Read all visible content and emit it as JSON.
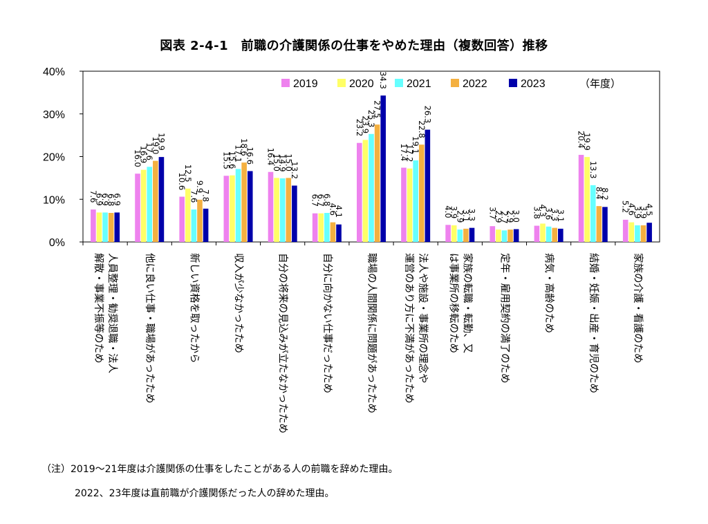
{
  "chart_data": {
    "type": "bar",
    "title": "図表 2-4-1　前職の介護関係の仕事をやめた理由（複数回答）推移",
    "ylim": [
      0,
      40
    ],
    "yticks": [
      "0%",
      "10%",
      "20%",
      "30%",
      "40%"
    ],
    "grid": false,
    "legend_position": "top-right",
    "legend_unit": "（年度）",
    "categories": [
      "人員整理・勧奨退職・法人解散・事業不振等のため",
      "他に良い仕事・職場があったため",
      "新しい資格を取ったから",
      "収入が少なかったため",
      "自分の将来の見込みが立たなかったため",
      "自分に向かない仕事だったため",
      "職場の人間関係に問題があったため",
      "法人や施設・事業所の理念や運営のあり方に不満があったため",
      "家族の転職・転勤、又は事業所の移転のため",
      "定年・雇用契約の満了のため",
      "病気・高齢のため",
      "結婚・妊娠・出産・育児のため",
      "家族の介護・看護のため"
    ],
    "category_lines": [
      [
        "人員整理・勧奨退職・法人",
        "解散・事業不振等のため"
      ],
      [
        "他に良い仕事・職場があったため"
      ],
      [
        "新しい資格を取ったから"
      ],
      [
        "収入が少なかったため"
      ],
      [
        "自分の将来の見込みが立たなかったため"
      ],
      [
        "自分に向かない仕事だったため"
      ],
      [
        "職場の人間関係に問題があったため"
      ],
      [
        "法人や施設・事業所の理念や",
        "運営のあり方に不満があったため"
      ],
      [
        "家族の転職・転勤、又",
        "は事業所の移転のため"
      ],
      [
        "定年・雇用契約の満了のため"
      ],
      [
        "病気・高齢のため"
      ],
      [
        "結婚・妊娠・出産・育児のため"
      ],
      [
        "家族の介護・看護のため"
      ]
    ],
    "series": [
      {
        "name": "2019",
        "color": "#ee82ee",
        "values": [
          7.6,
          16.0,
          10.6,
          15.5,
          16.4,
          6.7,
          23.2,
          17.4,
          4.0,
          3.7,
          3.8,
          20.4,
          5.2
        ]
      },
      {
        "name": "2020",
        "color": "#ffff66",
        "values": [
          6.9,
          16.9,
          12.5,
          15.6,
          15.0,
          6.7,
          23.9,
          17.2,
          3.9,
          2.9,
          4.3,
          19.9,
          4.6
        ]
      },
      {
        "name": "2021",
        "color": "#66ffff",
        "values": [
          6.9,
          17.6,
          7.6,
          17.1,
          14.9,
          6.8,
          25.3,
          19.1,
          2.9,
          2.7,
          3.6,
          13.3,
          3.9
        ]
      },
      {
        "name": "2022",
        "color": "#f4b040",
        "values": [
          6.8,
          19.0,
          9.9,
          18.6,
          15.0,
          4.6,
          27.5,
          22.8,
          3.1,
          2.9,
          3.3,
          8.4,
          3.9
        ]
      },
      {
        "name": "2023",
        "color": "#0000aa",
        "values": [
          6.9,
          19.9,
          7.8,
          16.6,
          13.2,
          4.1,
          34.3,
          26.3,
          3.3,
          3.0,
          3.1,
          8.2,
          4.5
        ]
      }
    ]
  },
  "notes": [
    "（注）2019～21年度は介護関係の仕事をしたことがある人の前職を辞めた理由。",
    "2022、23年度は直前職が介護関係だった人の辞めた理由。"
  ]
}
